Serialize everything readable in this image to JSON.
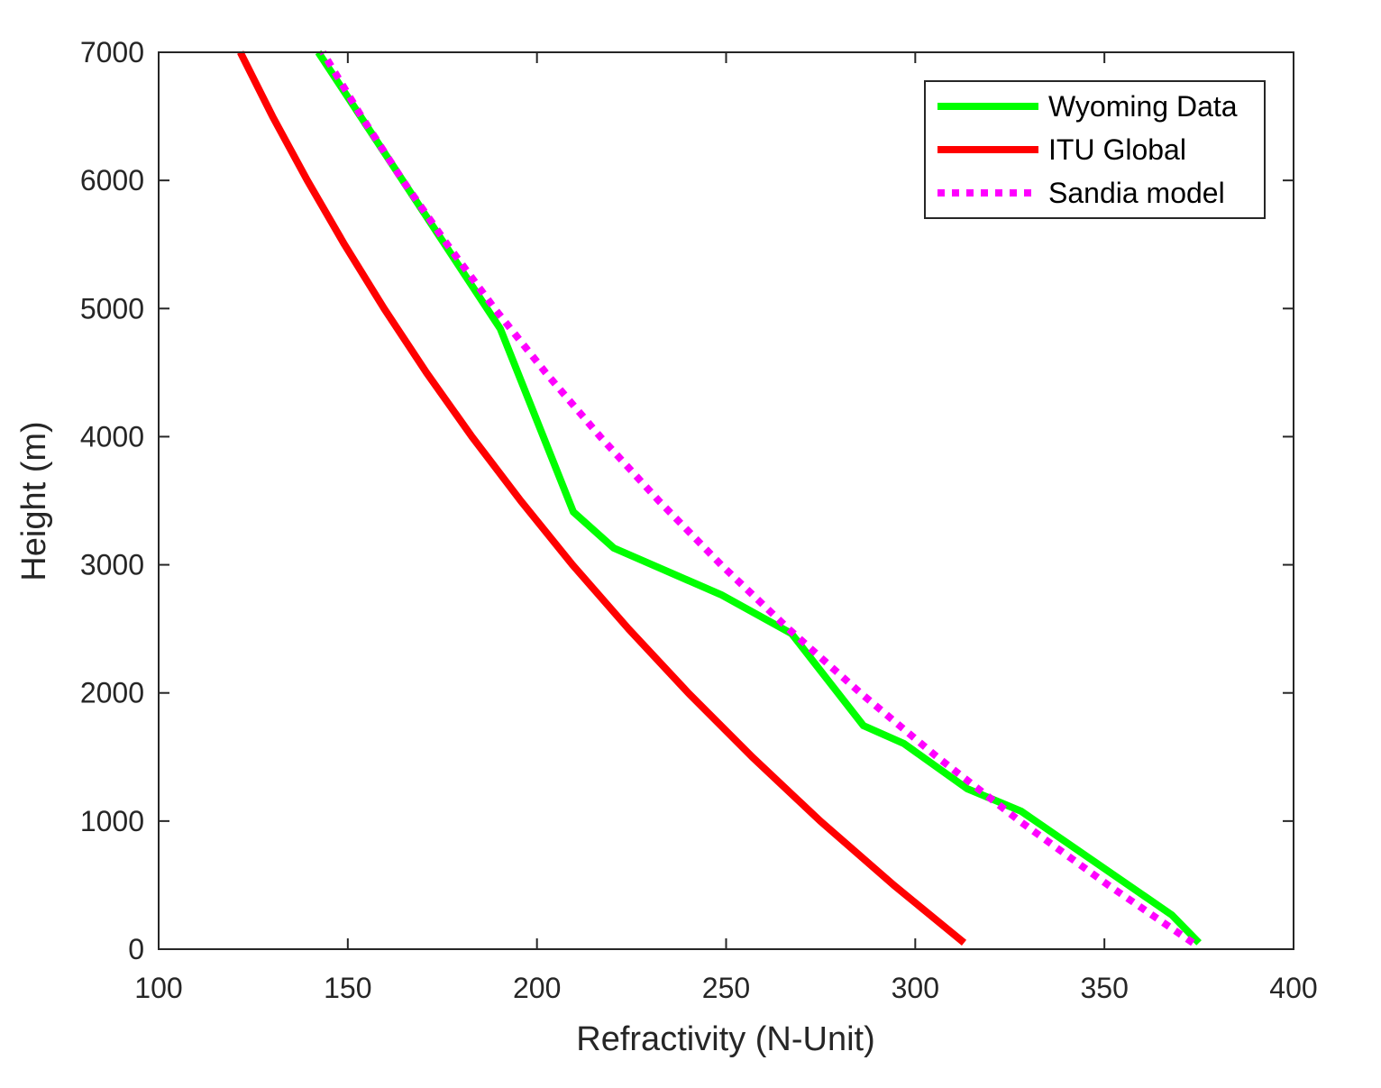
{
  "chart_data": {
    "type": "line",
    "xlabel": "Refractivity (N-Unit)",
    "ylabel": "Height (m)",
    "xlim": [
      100,
      400
    ],
    "ylim": [
      0,
      7000
    ],
    "xticks": [
      "100",
      "150",
      "200",
      "250",
      "300",
      "350",
      "400"
    ],
    "yticks": [
      "0",
      "1000",
      "2000",
      "3000",
      "4000",
      "5000",
      "6000",
      "7000"
    ],
    "legend_position": "top-right",
    "grid": false,
    "series": [
      {
        "name": "Wyoming Data",
        "color": "#00ff00",
        "style": "solid",
        "x": [
          375.0,
          367.8,
          328.0,
          313.7,
          297.0,
          286.3,
          267.3,
          248.7,
          220.3,
          209.6,
          190.3,
          142.2
        ],
        "y": [
          50,
          267,
          1077,
          1253,
          1605,
          1745,
          2463,
          2766,
          3131,
          3413,
          4842,
          7000
        ]
      },
      {
        "name": "ITU Global",
        "color": "#ff0000",
        "style": "solid",
        "x": [
          312.9,
          294.3,
          274.9,
          256.9,
          240.0,
          224.2,
          209.4,
          195.7,
          182.8,
          170.8,
          159.6,
          149.1,
          139.3,
          130.1,
          121.6
        ],
        "y": [
          50,
          500,
          1000,
          1500,
          2000,
          2500,
          3000,
          3500,
          4000,
          4500,
          5000,
          5500,
          6000,
          6500,
          7000
        ]
      },
      {
        "name": "Sandia model",
        "color": "#ff00ff",
        "style": "dotted",
        "x": [
          373.4,
          351.0,
          327.6,
          305.8,
          285.5,
          266.5,
          248.7,
          232.2,
          216.7,
          202.3,
          188.8,
          176.3,
          164.5,
          153.6,
          143.4
        ],
        "y": [
          50,
          500,
          1000,
          1500,
          2000,
          2500,
          3000,
          3500,
          4000,
          4500,
          5000,
          5500,
          6000,
          6500,
          7000
        ]
      }
    ]
  }
}
